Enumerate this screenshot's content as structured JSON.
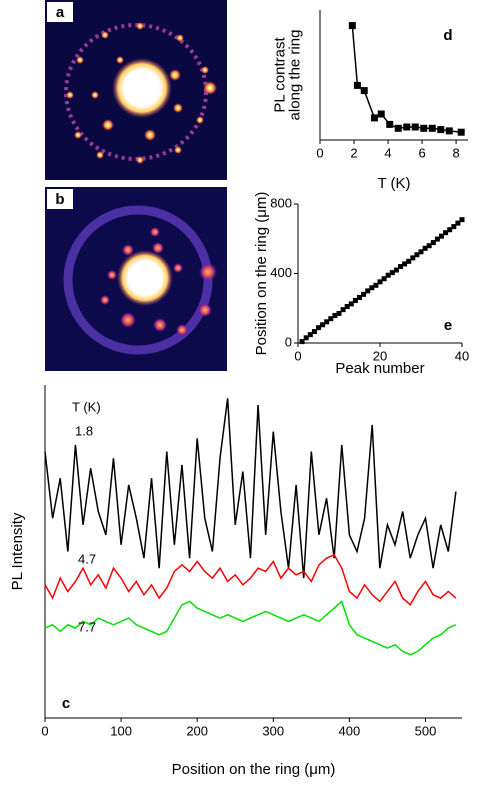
{
  "images": [
    {
      "label": "a"
    },
    {
      "label": "b"
    }
  ],
  "chart_data": [
    {
      "type": "line",
      "panel_label": "d",
      "xlabel": "T (K)",
      "ylabel": [
        "PL contrast",
        "along the ring"
      ],
      "x": [
        1.9,
        2.2,
        2.6,
        3.2,
        3.6,
        4.1,
        4.6,
        5.1,
        5.6,
        6.1,
        6.6,
        7.1,
        7.6,
        8.3
      ],
      "values": [
        88,
        42,
        38,
        17,
        20,
        12,
        9,
        10,
        10,
        9,
        9,
        8,
        7,
        6
      ],
      "color": "#000000",
      "xlim": [
        0,
        8.7
      ],
      "ylim": [
        0,
        100
      ],
      "xticks": [
        0,
        2,
        4,
        6,
        8
      ]
    },
    {
      "type": "scatter",
      "panel_label": "e",
      "xlabel": "Peak number",
      "ylabel": [
        "Position on the ring (μm)"
      ],
      "x": [
        1,
        2,
        3,
        4,
        5,
        6,
        7,
        8,
        9,
        10,
        11,
        12,
        13,
        14,
        15,
        16,
        17,
        18,
        19,
        20,
        21,
        22,
        23,
        24,
        25,
        26,
        27,
        28,
        29,
        30,
        31,
        32,
        33,
        34,
        35,
        36,
        37,
        38,
        39,
        40
      ],
      "values": [
        8,
        30,
        48,
        66,
        88,
        105,
        122,
        140,
        158,
        170,
        192,
        210,
        225,
        245,
        262,
        280,
        300,
        318,
        332,
        352,
        370,
        390,
        405,
        420,
        440,
        455,
        470,
        490,
        508,
        525,
        545,
        560,
        578,
        598,
        615,
        635,
        652,
        670,
        690,
        710
      ],
      "color": "#000000",
      "xlim": [
        0,
        40
      ],
      "ylim": [
        0,
        800
      ],
      "xticks": [
        0,
        20,
        40
      ],
      "yticks": [
        0,
        400,
        800
      ]
    },
    {
      "type": "line",
      "panel_label": "c",
      "xlabel": "Position on the ring (μm)",
      "ylabel": [
        "PL Intensity"
      ],
      "legend_title": "T (K)",
      "x": [
        0,
        10,
        20,
        30,
        40,
        50,
        60,
        70,
        80,
        90,
        100,
        110,
        120,
        130,
        140,
        150,
        160,
        170,
        180,
        190,
        200,
        210,
        220,
        230,
        240,
        250,
        260,
        270,
        280,
        290,
        300,
        310,
        320,
        330,
        340,
        350,
        360,
        370,
        380,
        390,
        400,
        410,
        420,
        430,
        440,
        450,
        460,
        470,
        480,
        490,
        500,
        510,
        520,
        530,
        540
      ],
      "series": [
        {
          "name": "1.8",
          "color": "#000000",
          "values": [
            80,
            60,
            72,
            50,
            82,
            58,
            75,
            62,
            55,
            78,
            52,
            70,
            60,
            48,
            72,
            45,
            80,
            52,
            76,
            48,
            84,
            60,
            50,
            78,
            96,
            58,
            74,
            48,
            94,
            55,
            86,
            62,
            45,
            70,
            42,
            80,
            55,
            66,
            48,
            82,
            55,
            50,
            60,
            88,
            45,
            58,
            52,
            62,
            48,
            55,
            60,
            45,
            58,
            50,
            68
          ]
        },
        {
          "name": "4.7",
          "color": "#ff0000",
          "values": [
            40,
            36,
            42,
            38,
            41,
            45,
            40,
            43,
            39,
            45,
            42,
            38,
            41,
            37,
            40,
            36,
            39,
            44,
            46,
            44,
            47,
            44,
            42,
            45,
            41,
            43,
            40,
            42,
            45,
            44,
            47,
            42,
            45,
            43,
            44,
            41,
            46,
            48,
            49,
            45,
            38,
            36,
            40,
            37,
            35,
            38,
            41,
            36,
            34,
            38,
            41,
            37,
            36,
            38,
            36
          ]
        },
        {
          "name": "7.7",
          "color": "#00e000",
          "values": [
            27,
            28,
            26,
            28,
            27,
            29,
            28,
            30,
            29,
            28,
            29,
            30,
            28,
            27,
            26,
            25,
            26,
            30,
            34,
            35,
            33,
            32,
            31,
            30,
            31,
            30,
            29,
            30,
            31,
            32,
            31,
            30,
            29,
            30,
            31,
            30,
            29,
            31,
            33,
            35,
            28,
            25,
            24,
            23,
            22,
            21,
            22,
            20,
            19,
            20,
            22,
            24,
            25,
            27,
            28
          ]
        }
      ],
      "xlim": [
        0,
        548
      ],
      "ylim": [
        0,
        100
      ],
      "xticks": [
        0,
        100,
        200,
        300,
        400,
        500
      ]
    }
  ]
}
